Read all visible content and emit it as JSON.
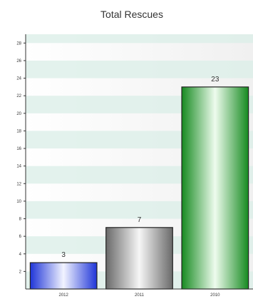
{
  "chart_data": {
    "type": "bar",
    "title": "Total Rescues",
    "xlabel": "",
    "ylabel": "",
    "categories": [
      "2012",
      "2011",
      "2010"
    ],
    "values": [
      3,
      7,
      23
    ],
    "ylim": [
      0,
      29
    ],
    "yticks": [
      2,
      4,
      6,
      8,
      10,
      12,
      14,
      16,
      18,
      20,
      22,
      24,
      26,
      28
    ],
    "grid": "alternating horizontal bands",
    "legend": "none",
    "colors": [
      "#2a3fe0",
      "#8a8a8a",
      "#1f9a2a"
    ]
  }
}
